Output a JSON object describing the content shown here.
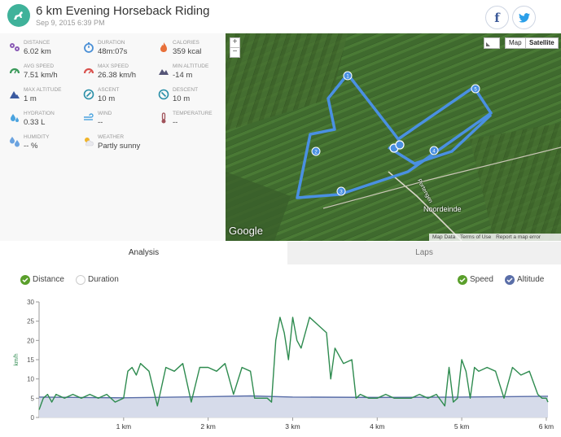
{
  "activity": {
    "title": "6 km Evening Horseback Riding",
    "date": "Sep 9, 2015 6:39 PM",
    "sport_icon": "horse-icon"
  },
  "social": {
    "facebook_icon": "facebook-icon",
    "twitter_icon": "twitter-icon"
  },
  "stats": [
    {
      "label": "Distance",
      "value": "6.02 km",
      "icon": "route-icon",
      "color": "#8a5bb5"
    },
    {
      "label": "Duration",
      "value": "48m:07s",
      "icon": "stopwatch-icon",
      "color": "#4a8fd6"
    },
    {
      "label": "Calories",
      "value": "359 kcal",
      "icon": "flame-icon",
      "color": "#e8703a"
    },
    {
      "label": "Avg speed",
      "value": "7.51 km/h",
      "icon": "speedometer-icon",
      "color": "#3a9a5a"
    },
    {
      "label": "Max speed",
      "value": "26.38 km/h",
      "icon": "speedometer-icon",
      "color": "#d9534f"
    },
    {
      "label": "Min altitude",
      "value": "-14 m",
      "icon": "mountain-icon",
      "color": "#555577"
    },
    {
      "label": "Max altitude",
      "value": "1 m",
      "icon": "mountain-icon",
      "color": "#3b5aa0"
    },
    {
      "label": "Ascent",
      "value": "10 m",
      "icon": "ascent-icon",
      "color": "#2a8fa8"
    },
    {
      "label": "Descent",
      "value": "10 m",
      "icon": "descent-icon",
      "color": "#2a8fa8"
    },
    {
      "label": "Hydration",
      "value": "0.33 L",
      "icon": "droplets-icon",
      "color": "#4aa3df"
    },
    {
      "label": "Wind",
      "value": "--",
      "icon": "wind-icon",
      "color": "#4aa3df"
    },
    {
      "label": "Temperature",
      "value": "--",
      "icon": "thermometer-icon",
      "color": "#a0525a"
    },
    {
      "label": "Humidity",
      "value": "-- %",
      "icon": "humidity-icon",
      "color": "#6aa3e0"
    },
    {
      "label": "Weather",
      "value": "Partly sunny",
      "icon": "partly-sunny-icon",
      "color": "#f0b429"
    }
  ],
  "map": {
    "zoom_in": "+",
    "zoom_out": "−",
    "type_map": "Map",
    "type_satellite": "Satellite",
    "logo": "Google",
    "place_label": "Noordeinde",
    "street_label": "Portengen",
    "footer": [
      "Map Data",
      "Terms of Use",
      "Report a map error"
    ],
    "route_color": "#4a90e2",
    "markers": [
      "1",
      "2",
      "3",
      "4",
      "5"
    ]
  },
  "tabs": {
    "analysis": "Analysis",
    "laps": "Laps"
  },
  "chart_options": {
    "distance": "Distance",
    "duration": "Duration",
    "speed": "Speed",
    "altitude": "Altitude"
  },
  "chart_data": {
    "type": "line",
    "xlabel": "",
    "ylabel": "km/h",
    "xlim": [
      0,
      6.02
    ],
    "ylim": [
      0,
      30
    ],
    "x_ticks": [
      1,
      2,
      3,
      4,
      5,
      6
    ],
    "x_tick_labels": [
      "1 km",
      "2 km",
      "3 km",
      "4 km",
      "5 km",
      "6 km"
    ],
    "y_ticks": [
      0,
      5,
      10,
      15,
      20,
      25,
      30
    ],
    "series": [
      {
        "name": "Speed",
        "color": "#2e8b4f",
        "x": [
          0,
          0.05,
          0.1,
          0.15,
          0.2,
          0.3,
          0.4,
          0.5,
          0.6,
          0.7,
          0.8,
          0.9,
          1.0,
          1.05,
          1.1,
          1.15,
          1.2,
          1.3,
          1.4,
          1.5,
          1.6,
          1.7,
          1.8,
          1.9,
          2.0,
          2.1,
          2.2,
          2.3,
          2.4,
          2.5,
          2.55,
          2.6,
          2.7,
          2.75,
          2.8,
          2.85,
          2.9,
          2.95,
          3.0,
          3.05,
          3.1,
          3.2,
          3.3,
          3.4,
          3.45,
          3.5,
          3.6,
          3.7,
          3.75,
          3.8,
          3.9,
          4.0,
          4.1,
          4.2,
          4.3,
          4.4,
          4.5,
          4.6,
          4.7,
          4.8,
          4.85,
          4.9,
          4.95,
          5.0,
          5.05,
          5.1,
          5.15,
          5.2,
          5.3,
          5.4,
          5.5,
          5.6,
          5.7,
          5.8,
          5.9,
          5.95,
          6.0,
          6.02
        ],
        "values": [
          2,
          5,
          6,
          4,
          6,
          5,
          6,
          5,
          6,
          5,
          6,
          4,
          5,
          12,
          13,
          11,
          14,
          12,
          3,
          13,
          12,
          14,
          4,
          13,
          13,
          12,
          14,
          6,
          13,
          12,
          5,
          5,
          5,
          4,
          20,
          26,
          22,
          15,
          26,
          20,
          18,
          26,
          24,
          22,
          10,
          18,
          14,
          15,
          5,
          6,
          5,
          5,
          6,
          5,
          5,
          5,
          6,
          5,
          6,
          3,
          13,
          4,
          5,
          15,
          12,
          5,
          13,
          12,
          13,
          12,
          5,
          13,
          11,
          12,
          6,
          5,
          5,
          4
        ]
      },
      {
        "name": "Altitude",
        "color": "#5a6ea8",
        "x": [
          0,
          1,
          2,
          2.5,
          3,
          4,
          5,
          6,
          6.02
        ],
        "values": [
          5.3,
          5.1,
          5.4,
          5.6,
          5.3,
          5.2,
          5.3,
          5.5,
          5.5
        ]
      }
    ]
  }
}
